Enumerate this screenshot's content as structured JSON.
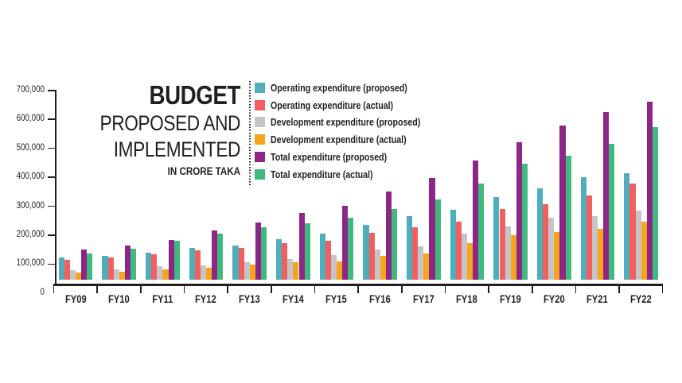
{
  "title": {
    "line1": "BUDGET",
    "line2": "PROPOSED AND",
    "line3": "IMPLEMENTED",
    "unit_line": "IN CRORE TAKA"
  },
  "chart_data": {
    "type": "bar",
    "title": "BUDGET PROPOSED AND IMPLEMENTED",
    "subtitle": "IN CRORE TAKA",
    "unit": "crore taka",
    "grid": false,
    "legend_position": "top-right",
    "categories": [
      "FY09",
      "FY10",
      "FY11",
      "FY12",
      "FY13",
      "FY14",
      "FY15",
      "FY16",
      "FY17",
      "FY18",
      "FY19",
      "FY20",
      "FY21",
      "FY22"
    ],
    "y_axis": {
      "min": 0,
      "max": 700000,
      "tick_interval": 100000,
      "tick_labels": [
        "0",
        "100,000",
        "200,000",
        "300,000",
        "400,000",
        "500,000",
        "600,000",
        "700,000"
      ]
    },
    "series": [
      {
        "name": "Operating expenditure (proposed)",
        "color": "#4EAEBB",
        "values": [
          78000,
          84500,
          94000,
          110000,
          119000,
          141500,
          162000,
          191500,
          220500,
          242000,
          286500,
          317000,
          355000,
          369000
        ]
      },
      {
        "name": "Operating expenditure (actual)",
        "color": "#F25F5F",
        "values": [
          71000,
          79000,
          89000,
          102500,
          111000,
          127500,
          136500,
          164000,
          182000,
          202500,
          245000,
          262000,
          292000,
          335000
        ]
      },
      {
        "name": "Development expenditure (proposed)",
        "color": "#C5C5C9",
        "values": [
          33000,
          37500,
          47500,
          52000,
          60500,
          73000,
          86000,
          104500,
          118000,
          161000,
          186000,
          216000,
          220500,
          241000
        ]
      },
      {
        "name": "Development expenditure (actual)",
        "color": "#F7A51D",
        "values": [
          25500,
          30000,
          38000,
          43000,
          54000,
          61000,
          65000,
          84500,
          92500,
          127000,
          156500,
          165500,
          176500,
          202500
        ]
      },
      {
        "name": "Total expenditure (proposed)",
        "color": "#8E2688",
        "values": [
          106000,
          120000,
          139500,
          173000,
          200500,
          232000,
          258000,
          306000,
          353500,
          413000,
          477000,
          534000,
          580000,
          616000
        ]
      },
      {
        "name": "Total expenditure (actual)",
        "color": "#3FB97D",
        "values": [
          92500,
          108000,
          136000,
          159500,
          182000,
          196000,
          214500,
          246500,
          278000,
          333000,
          402000,
          431000,
          470000,
          530000
        ]
      }
    ]
  }
}
